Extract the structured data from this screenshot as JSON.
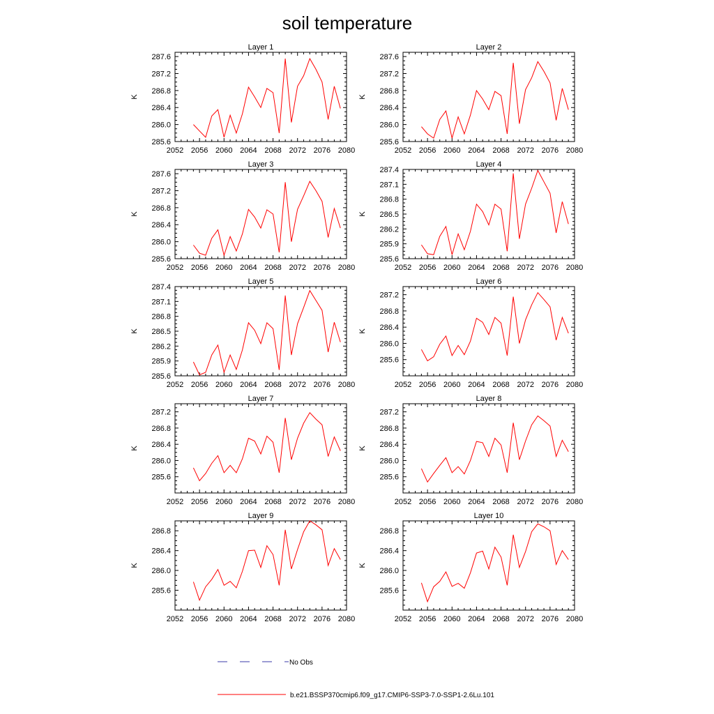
{
  "figure": {
    "title": "soil temperature"
  },
  "legend": {
    "obs_label": "No Obs",
    "model_label": "b.e21.BSSP370cmip6.f09_g17.CMIP6-SSP3-7.0-SSP1-2.6Lu.101",
    "obs_color": "#3a3aa8",
    "model_color": "#ff0000"
  },
  "chart_data": [
    {
      "type": "line",
      "title": "Layer 1",
      "xlabel": "",
      "ylabel": "K",
      "xlim": [
        2052,
        2080
      ],
      "ylim": [
        285.6,
        287.7
      ],
      "xticks": [
        2052,
        2056,
        2060,
        2064,
        2068,
        2072,
        2076,
        2080
      ],
      "yticks": [
        285.6,
        286.0,
        286.4,
        286.8,
        287.2,
        287.6
      ],
      "x": [
        2055,
        2056,
        2057,
        2058,
        2059,
        2060,
        2061,
        2062,
        2063,
        2064,
        2065,
        2066,
        2067,
        2068,
        2069,
        2070,
        2071,
        2072,
        2073,
        2074,
        2075,
        2076,
        2077,
        2078,
        2079
      ],
      "series": [
        {
          "name": "b.e21.BSSP370cmip6.f09_g17.CMIP6-SSP3-7.0-SSP1-2.6Lu.101",
          "values": [
            286.0,
            285.85,
            285.7,
            286.2,
            286.35,
            285.7,
            286.22,
            285.8,
            286.25,
            286.88,
            286.65,
            286.4,
            286.85,
            286.75,
            285.8,
            287.55,
            286.05,
            286.9,
            287.15,
            287.55,
            287.3,
            287.0,
            286.12,
            286.9,
            286.38
          ]
        }
      ]
    },
    {
      "type": "line",
      "title": "Layer 2",
      "xlabel": "",
      "ylabel": "K",
      "xlim": [
        2052,
        2080
      ],
      "ylim": [
        285.6,
        287.7
      ],
      "xticks": [
        2052,
        2056,
        2060,
        2064,
        2068,
        2072,
        2076,
        2080
      ],
      "yticks": [
        285.6,
        286.0,
        286.4,
        286.8,
        287.2,
        287.6
      ],
      "x": [
        2055,
        2056,
        2057,
        2058,
        2059,
        2060,
        2061,
        2062,
        2063,
        2064,
        2065,
        2066,
        2067,
        2068,
        2069,
        2070,
        2071,
        2072,
        2073,
        2074,
        2075,
        2076,
        2077,
        2078,
        2079
      ],
      "series": [
        {
          "name": "b.e21.BSSP370cmip6.f09_g17.CMIP6-SSP3-7.0-SSP1-2.6Lu.101",
          "values": [
            285.95,
            285.78,
            285.68,
            286.12,
            286.32,
            285.68,
            286.18,
            285.78,
            286.22,
            286.8,
            286.6,
            286.35,
            286.78,
            286.68,
            285.78,
            287.45,
            286.02,
            286.82,
            287.1,
            287.48,
            287.25,
            286.98,
            286.1,
            286.85,
            286.35
          ]
        }
      ]
    },
    {
      "type": "line",
      "title": "Layer 3",
      "xlabel": "",
      "ylabel": "K",
      "xlim": [
        2052,
        2080
      ],
      "ylim": [
        285.6,
        287.7
      ],
      "xticks": [
        2052,
        2056,
        2060,
        2064,
        2068,
        2072,
        2076,
        2080
      ],
      "yticks": [
        285.6,
        286.0,
        286.4,
        286.8,
        287.2,
        287.6
      ],
      "x": [
        2055,
        2056,
        2057,
        2058,
        2059,
        2060,
        2061,
        2062,
        2063,
        2064,
        2065,
        2066,
        2067,
        2068,
        2069,
        2070,
        2071,
        2072,
        2073,
        2074,
        2075,
        2076,
        2077,
        2078,
        2079
      ],
      "series": [
        {
          "name": "b.e21.BSSP370cmip6.f09_g17.CMIP6-SSP3-7.0-SSP1-2.6Lu.101",
          "values": [
            285.92,
            285.73,
            285.68,
            286.08,
            286.28,
            285.68,
            286.12,
            285.78,
            286.18,
            286.76,
            286.58,
            286.32,
            286.75,
            286.65,
            285.75,
            287.4,
            286.0,
            286.76,
            287.08,
            287.42,
            287.2,
            286.95,
            286.1,
            286.78,
            286.32
          ]
        }
      ]
    },
    {
      "type": "line",
      "title": "Layer 4",
      "xlabel": "",
      "ylabel": "K",
      "xlim": [
        2052,
        2080
      ],
      "ylim": [
        285.6,
        287.4
      ],
      "xticks": [
        2052,
        2056,
        2060,
        2064,
        2068,
        2072,
        2076,
        2080
      ],
      "yticks": [
        285.6,
        285.9,
        286.2,
        286.5,
        286.8,
        287.1,
        287.4
      ],
      "x": [
        2055,
        2056,
        2057,
        2058,
        2059,
        2060,
        2061,
        2062,
        2063,
        2064,
        2065,
        2066,
        2067,
        2068,
        2069,
        2070,
        2071,
        2072,
        2073,
        2074,
        2075,
        2076,
        2077,
        2078,
        2079
      ],
      "series": [
        {
          "name": "b.e21.BSSP370cmip6.f09_g17.CMIP6-SSP3-7.0-SSP1-2.6Lu.101",
          "values": [
            285.88,
            285.7,
            285.68,
            286.05,
            286.25,
            285.68,
            286.1,
            285.78,
            286.15,
            286.7,
            286.55,
            286.28,
            286.7,
            286.6,
            285.75,
            287.32,
            286.0,
            286.7,
            287.02,
            287.38,
            287.15,
            286.92,
            286.12,
            286.75,
            286.3
          ]
        }
      ]
    },
    {
      "type": "line",
      "title": "Layer 5",
      "xlabel": "",
      "ylabel": "K",
      "xlim": [
        2052,
        2080
      ],
      "ylim": [
        285.6,
        287.4
      ],
      "xticks": [
        2052,
        2056,
        2060,
        2064,
        2068,
        2072,
        2076,
        2080
      ],
      "yticks": [
        285.6,
        285.9,
        286.2,
        286.5,
        286.8,
        287.1,
        287.4
      ],
      "x": [
        2055,
        2056,
        2057,
        2058,
        2059,
        2060,
        2061,
        2062,
        2063,
        2064,
        2065,
        2066,
        2067,
        2068,
        2069,
        2070,
        2071,
        2072,
        2073,
        2074,
        2075,
        2076,
        2077,
        2078,
        2079
      ],
      "series": [
        {
          "name": "b.e21.BSSP370cmip6.f09_g17.CMIP6-SSP3-7.0-SSP1-2.6Lu.101",
          "values": [
            285.88,
            285.62,
            285.67,
            286.02,
            286.22,
            285.67,
            286.02,
            285.73,
            286.12,
            286.67,
            286.52,
            286.25,
            286.67,
            286.55,
            285.72,
            287.22,
            286.02,
            286.65,
            286.98,
            287.32,
            287.12,
            286.92,
            286.08,
            286.68,
            286.28
          ]
        }
      ]
    },
    {
      "type": "line",
      "title": "Layer 6",
      "xlabel": "",
      "ylabel": "K",
      "xlim": [
        2052,
        2080
      ],
      "ylim": [
        285.2,
        287.4
      ],
      "xticks": [
        2052,
        2056,
        2060,
        2064,
        2068,
        2072,
        2076,
        2080
      ],
      "yticks": [
        285.6,
        286.0,
        286.4,
        286.8,
        287.2
      ],
      "x": [
        2055,
        2056,
        2057,
        2058,
        2059,
        2060,
        2061,
        2062,
        2063,
        2064,
        2065,
        2066,
        2067,
        2068,
        2069,
        2070,
        2071,
        2072,
        2073,
        2074,
        2075,
        2076,
        2077,
        2078,
        2079
      ],
      "series": [
        {
          "name": "b.e21.BSSP370cmip6.f09_g17.CMIP6-SSP3-7.0-SSP1-2.6Lu.101",
          "values": [
            285.85,
            285.57,
            285.67,
            285.98,
            286.18,
            285.7,
            285.95,
            285.72,
            286.05,
            286.62,
            286.52,
            286.22,
            286.64,
            286.5,
            285.7,
            287.15,
            286.0,
            286.58,
            286.95,
            287.25,
            287.08,
            286.9,
            286.08,
            286.64,
            286.25
          ]
        }
      ]
    },
    {
      "type": "line",
      "title": "Layer 7",
      "xlabel": "",
      "ylabel": "K",
      "xlim": [
        2052,
        2080
      ],
      "ylim": [
        285.2,
        287.4
      ],
      "xticks": [
        2052,
        2056,
        2060,
        2064,
        2068,
        2072,
        2076,
        2080
      ],
      "yticks": [
        285.6,
        286.0,
        286.4,
        286.8,
        287.2
      ],
      "x": [
        2055,
        2056,
        2057,
        2058,
        2059,
        2060,
        2061,
        2062,
        2063,
        2064,
        2065,
        2066,
        2067,
        2068,
        2069,
        2070,
        2071,
        2072,
        2073,
        2074,
        2075,
        2076,
        2077,
        2078,
        2079
      ],
      "series": [
        {
          "name": "b.e21.BSSP370cmip6.f09_g17.CMIP6-SSP3-7.0-SSP1-2.6Lu.101",
          "values": [
            285.82,
            285.5,
            285.68,
            285.93,
            286.12,
            285.7,
            285.88,
            285.7,
            286.04,
            286.55,
            286.48,
            286.16,
            286.6,
            286.45,
            285.7,
            287.05,
            286.02,
            286.55,
            286.92,
            287.18,
            287.02,
            286.88,
            286.1,
            286.58,
            286.24
          ]
        }
      ]
    },
    {
      "type": "line",
      "title": "Layer 8",
      "xlabel": "",
      "ylabel": "K",
      "xlim": [
        2052,
        2080
      ],
      "ylim": [
        285.2,
        287.4
      ],
      "xticks": [
        2052,
        2056,
        2060,
        2064,
        2068,
        2072,
        2076,
        2080
      ],
      "yticks": [
        285.6,
        286.0,
        286.4,
        286.8,
        287.2
      ],
      "x": [
        2055,
        2056,
        2057,
        2058,
        2059,
        2060,
        2061,
        2062,
        2063,
        2064,
        2065,
        2066,
        2067,
        2068,
        2069,
        2070,
        2071,
        2072,
        2073,
        2074,
        2075,
        2076,
        2077,
        2078,
        2079
      ],
      "series": [
        {
          "name": "b.e21.BSSP370cmip6.f09_g17.CMIP6-SSP3-7.0-SSP1-2.6Lu.101",
          "values": [
            285.8,
            285.47,
            285.68,
            285.88,
            286.07,
            285.7,
            285.85,
            285.67,
            286.0,
            286.47,
            286.44,
            286.1,
            286.55,
            286.38,
            285.7,
            286.93,
            286.02,
            286.48,
            286.88,
            287.1,
            286.98,
            286.85,
            286.1,
            286.5,
            286.22
          ]
        }
      ]
    },
    {
      "type": "line",
      "title": "Layer 9",
      "xlabel": "",
      "ylabel": "K",
      "xlim": [
        2052,
        2080
      ],
      "ylim": [
        285.2,
        287.0
      ],
      "xticks": [
        2052,
        2056,
        2060,
        2064,
        2068,
        2072,
        2076,
        2080
      ],
      "yticks": [
        285.6,
        286.0,
        286.4,
        286.8
      ],
      "x": [
        2055,
        2056,
        2057,
        2058,
        2059,
        2060,
        2061,
        2062,
        2063,
        2064,
        2065,
        2066,
        2067,
        2068,
        2069,
        2070,
        2071,
        2072,
        2073,
        2074,
        2075,
        2076,
        2077,
        2078,
        2079
      ],
      "series": [
        {
          "name": "b.e21.BSSP370cmip6.f09_g17.CMIP6-SSP3-7.0-SSP1-2.6Lu.101",
          "values": [
            285.77,
            285.4,
            285.67,
            285.82,
            286.02,
            285.7,
            285.78,
            285.65,
            285.98,
            286.4,
            286.41,
            286.06,
            286.5,
            286.32,
            285.7,
            286.82,
            286.03,
            286.42,
            286.78,
            287.0,
            286.92,
            286.82,
            286.1,
            286.44,
            286.22
          ]
        }
      ]
    },
    {
      "type": "line",
      "title": "Layer 10",
      "xlabel": "",
      "ylabel": "K",
      "xlim": [
        2052,
        2080
      ],
      "ylim": [
        285.2,
        287.0
      ],
      "xticks": [
        2052,
        2056,
        2060,
        2064,
        2068,
        2072,
        2076,
        2080
      ],
      "yticks": [
        285.6,
        286.0,
        286.4,
        286.8
      ],
      "x": [
        2055,
        2056,
        2057,
        2058,
        2059,
        2060,
        2061,
        2062,
        2063,
        2064,
        2065,
        2066,
        2067,
        2068,
        2069,
        2070,
        2071,
        2072,
        2073,
        2074,
        2075,
        2076,
        2077,
        2078,
        2079
      ],
      "series": [
        {
          "name": "b.e21.BSSP370cmip6.f09_g17.CMIP6-SSP3-7.0-SSP1-2.6Lu.101",
          "values": [
            285.75,
            285.37,
            285.67,
            285.78,
            285.97,
            285.68,
            285.74,
            285.64,
            285.95,
            286.35,
            286.39,
            286.03,
            286.47,
            286.27,
            285.7,
            286.72,
            286.06,
            286.38,
            286.78,
            286.94,
            286.88,
            286.8,
            286.12,
            286.4,
            286.22
          ]
        }
      ]
    }
  ]
}
